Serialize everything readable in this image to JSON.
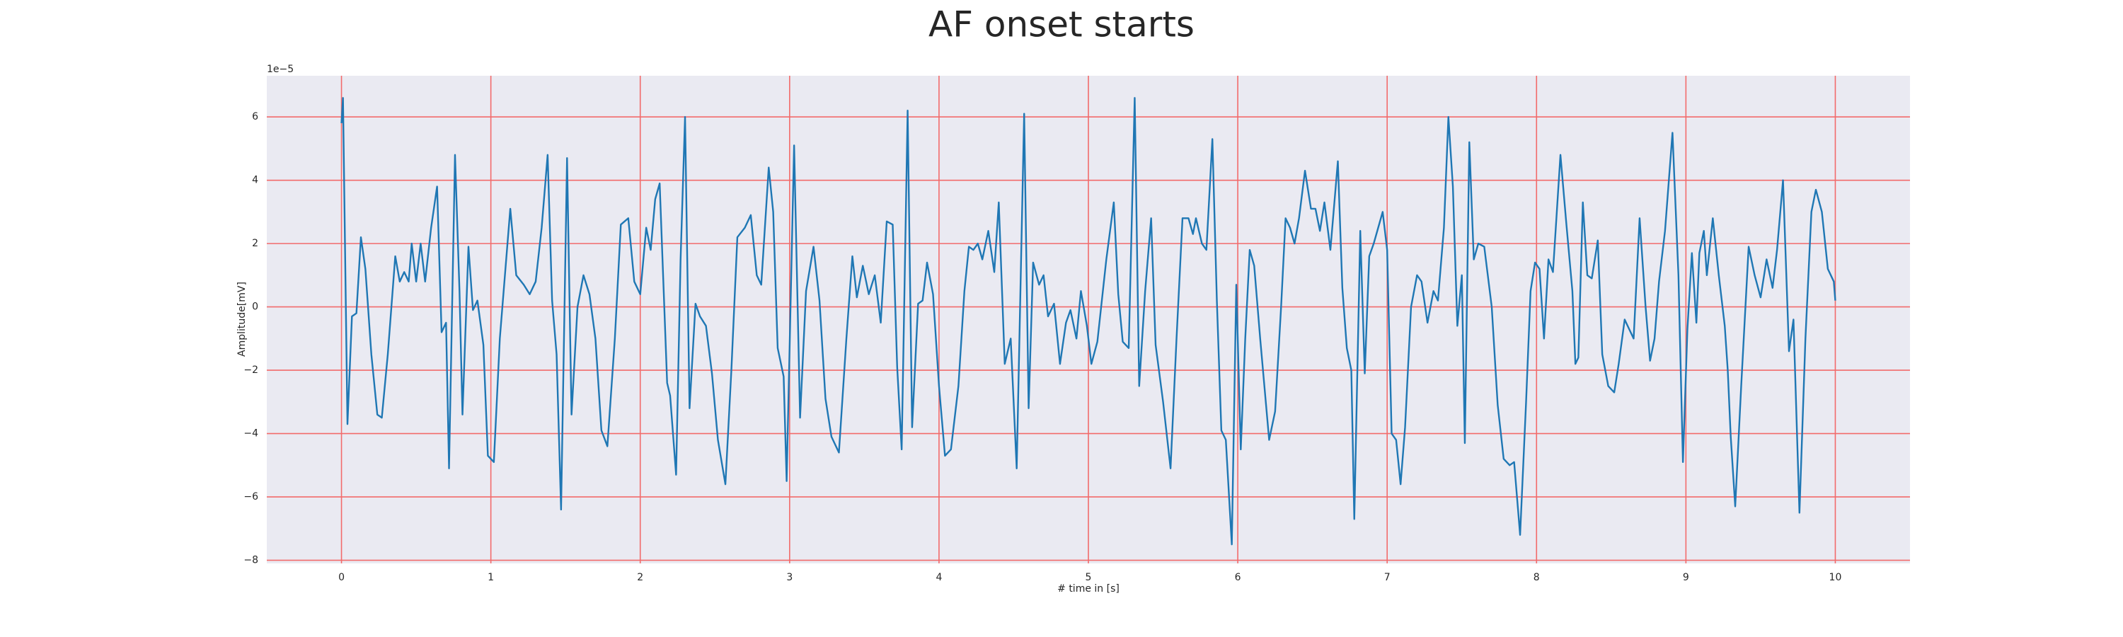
{
  "chart_data": {
    "type": "line",
    "title": "AF onset starts",
    "xlabel": "# time in [s]",
    "ylabel": "Amplitude[mV]",
    "offset_label": "1e−5",
    "color": "#1f77b4",
    "grid": true,
    "grid_color": "#f26b6b",
    "xlim": [
      -0.5,
      10.5
    ],
    "ylim": [
      -8.1,
      7.3
    ],
    "xticks": [
      0,
      1,
      2,
      3,
      4,
      5,
      6,
      7,
      8,
      9,
      10
    ],
    "yticks": [
      {
        "value": -8,
        "label": "−8"
      },
      {
        "value": -6,
        "label": "−6"
      },
      {
        "value": -4,
        "label": "−4"
      },
      {
        "value": -2,
        "label": "−2"
      },
      0,
      2,
      4,
      6
    ],
    "x": [
      0.0,
      0.01,
      0.04,
      0.07,
      0.1,
      0.13,
      0.16,
      0.2,
      0.24,
      0.27,
      0.31,
      0.36,
      0.39,
      0.42,
      0.45,
      0.47,
      0.5,
      0.53,
      0.56,
      0.6,
      0.64,
      0.67,
      0.7,
      0.72,
      0.76,
      0.79,
      0.81,
      0.85,
      0.88,
      0.91,
      0.95,
      0.98,
      1.02,
      1.06,
      1.13,
      1.17,
      1.22,
      1.26,
      1.3,
      1.34,
      1.38,
      1.41,
      1.44,
      1.47,
      1.51,
      1.54,
      1.58,
      1.62,
      1.66,
      1.7,
      1.74,
      1.78,
      1.83,
      1.87,
      1.92,
      1.96,
      2.0,
      2.04,
      2.07,
      2.1,
      2.13,
      2.18,
      2.2,
      2.24,
      2.27,
      2.3,
      2.33,
      2.37,
      2.4,
      2.44,
      2.48,
      2.52,
      2.57,
      2.61,
      2.65,
      2.7,
      2.74,
      2.78,
      2.81,
      2.86,
      2.89,
      2.92,
      2.96,
      2.98,
      3.03,
      3.07,
      3.11,
      3.16,
      3.2,
      3.24,
      3.28,
      3.33,
      3.38,
      3.42,
      3.45,
      3.49,
      3.53,
      3.57,
      3.61,
      3.65,
      3.69,
      3.72,
      3.75,
      3.79,
      3.82,
      3.86,
      3.89,
      3.92,
      3.96,
      4.0,
      4.04,
      4.08,
      4.13,
      4.17,
      4.2,
      4.23,
      4.26,
      4.29,
      4.33,
      4.37,
      4.4,
      4.44,
      4.48,
      4.52,
      4.57,
      4.6,
      4.63,
      4.67,
      4.7,
      4.73,
      4.77,
      4.81,
      4.85,
      4.88,
      4.92,
      4.95,
      4.99,
      5.02,
      5.06,
      5.12,
      5.17,
      5.2,
      5.23,
      5.27,
      5.31,
      5.34,
      5.38,
      5.42,
      5.45,
      5.5,
      5.55,
      5.59,
      5.63,
      5.67,
      5.7,
      5.72,
      5.76,
      5.79,
      5.83,
      5.86,
      5.89,
      5.92,
      5.96,
      5.99,
      6.02,
      6.05,
      6.08,
      6.11,
      6.15,
      6.18,
      6.21,
      6.25,
      6.29,
      6.32,
      6.35,
      6.38,
      6.41,
      6.45,
      6.49,
      6.52,
      6.55,
      6.58,
      6.62,
      6.67,
      6.7,
      6.73,
      6.76,
      6.78,
      6.82,
      6.85,
      6.88,
      6.91,
      6.97,
      7.0,
      7.03,
      7.06,
      7.09,
      7.12,
      7.16,
      7.2,
      7.23,
      7.27,
      7.31,
      7.34,
      7.38,
      7.41,
      7.44,
      7.47,
      7.5,
      7.52,
      7.55,
      7.58,
      7.61,
      7.65,
      7.7,
      7.74,
      7.78,
      7.82,
      7.85,
      7.89,
      7.93,
      7.96,
      7.99,
      8.02,
      8.05,
      8.08,
      8.11,
      8.16,
      8.2,
      8.24,
      8.26,
      8.28,
      8.31,
      8.34,
      8.37,
      8.41,
      8.44,
      8.48,
      8.52,
      8.55,
      8.59,
      8.65,
      8.69,
      8.73,
      8.76,
      8.79,
      8.82,
      8.86,
      8.91,
      8.95,
      8.98,
      9.01,
      9.04,
      9.07,
      9.09,
      9.12,
      9.14,
      9.18,
      9.22,
      9.26,
      9.28,
      9.3,
      9.33,
      9.37,
      9.42,
      9.46,
      9.5,
      9.54,
      9.58,
      9.61,
      9.65,
      9.69,
      9.72,
      9.76,
      9.8,
      9.84,
      9.87,
      9.91,
      9.95,
      9.99,
      10.0
    ],
    "values": [
      5.8,
      6.6,
      -3.7,
      -0.3,
      -0.2,
      2.2,
      1.2,
      -1.5,
      -3.4,
      -3.5,
      -1.5,
      1.6,
      0.8,
      1.1,
      0.8,
      2.0,
      0.8,
      2.0,
      0.8,
      2.5,
      3.8,
      -0.8,
      -0.5,
      -5.1,
      4.8,
      0.5,
      -3.4,
      1.9,
      -0.1,
      0.2,
      -1.2,
      -4.7,
      -4.9,
      -1.0,
      3.1,
      1.0,
      0.7,
      0.4,
      0.8,
      2.5,
      4.8,
      0.2,
      -1.5,
      -6.4,
      4.7,
      -3.4,
      0.0,
      1.0,
      0.4,
      -1.0,
      -3.9,
      -4.4,
      -1.0,
      2.6,
      2.8,
      0.8,
      0.4,
      2.5,
      1.8,
      3.4,
      3.9,
      -2.4,
      -2.8,
      -5.3,
      1.5,
      6.0,
      -3.2,
      0.1,
      -0.3,
      -0.6,
      -2.1,
      -4.2,
      -5.6,
      -2.0,
      2.2,
      2.5,
      2.9,
      1.0,
      0.7,
      4.4,
      3.0,
      -1.3,
      -2.2,
      -5.5,
      5.1,
      -3.5,
      0.5,
      1.9,
      0.2,
      -2.9,
      -4.1,
      -4.6,
      -1.0,
      1.6,
      0.3,
      1.3,
      0.4,
      1.0,
      -0.5,
      2.7,
      2.6,
      -1.9,
      -4.5,
      6.2,
      -3.8,
      0.1,
      0.2,
      1.4,
      0.4,
      -2.5,
      -4.7,
      -4.5,
      -2.5,
      0.5,
      1.9,
      1.8,
      2.0,
      1.5,
      2.4,
      1.1,
      3.3,
      -1.8,
      -1.0,
      -5.1,
      6.1,
      -3.2,
      1.4,
      0.7,
      1.0,
      -0.3,
      0.1,
      -1.8,
      -0.5,
      -0.1,
      -1.0,
      0.5,
      -0.6,
      -1.8,
      -1.1,
      1.5,
      3.3,
      0.4,
      -1.1,
      -1.3,
      6.6,
      -2.5,
      0.5,
      2.8,
      -1.2,
      -3.0,
      -5.1,
      -1.0,
      2.8,
      2.8,
      2.3,
      2.8,
      2.0,
      1.8,
      5.3,
      0.2,
      -3.9,
      -4.2,
      -7.5,
      0.7,
      -4.5,
      -1.0,
      1.8,
      1.3,
      -1.0,
      -2.6,
      -4.2,
      -3.3,
      0.0,
      2.8,
      2.5,
      2.0,
      2.8,
      4.3,
      3.1,
      3.1,
      2.4,
      3.3,
      1.8,
      4.6,
      0.6,
      -1.3,
      -2.0,
      -6.7,
      2.4,
      -2.1,
      1.6,
      2.0,
      3.0,
      1.8,
      -4.0,
      -4.2,
      -5.6,
      -3.8,
      0.0,
      1.0,
      0.8,
      -0.5,
      0.5,
      0.2,
      2.5,
      6.0,
      3.8,
      -0.6,
      1.0,
      -4.3,
      5.2,
      1.5,
      2.0,
      1.9,
      0.0,
      -3.1,
      -4.8,
      -5.0,
      -4.9,
      -7.2,
      -3.0,
      0.5,
      1.4,
      1.2,
      -1.0,
      1.5,
      1.1,
      4.8,
      2.6,
      0.5,
      -1.8,
      -1.6,
      3.3,
      1.0,
      0.9,
      2.1,
      -1.5,
      -2.5,
      -2.7,
      -1.8,
      -0.4,
      -1.0,
      2.8,
      0.0,
      -1.7,
      -1.0,
      0.8,
      2.4,
      5.5,
      1.0,
      -4.9,
      -0.7,
      1.7,
      -0.5,
      1.7,
      2.4,
      1.0,
      2.8,
      1.0,
      -0.6,
      -2.0,
      -4.1,
      -6.3,
      -2.5,
      1.9,
      1.0,
      0.3,
      1.5,
      0.6,
      1.8,
      4.0,
      -1.4,
      -0.4,
      -6.5,
      -1.0,
      3.0,
      3.7,
      3.0,
      1.2,
      0.8,
      0.2
    ]
  }
}
